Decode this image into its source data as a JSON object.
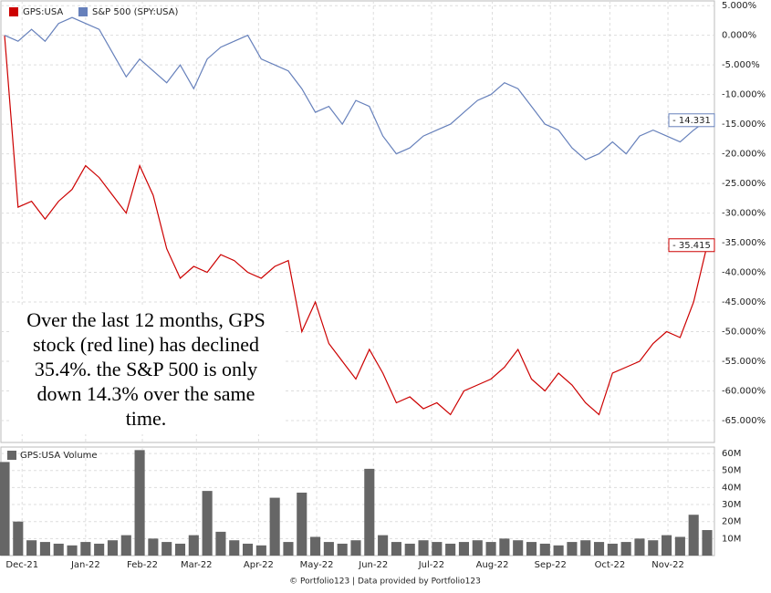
{
  "chart_data": [
    {
      "type": "line",
      "x": [
        0,
        1,
        2,
        3,
        4,
        5,
        6,
        7,
        8,
        9,
        10,
        11,
        12,
        13,
        14,
        15,
        16,
        17,
        18,
        19,
        20,
        21,
        22,
        23,
        24,
        25,
        26,
        27,
        28,
        29,
        30,
        31,
        32,
        33,
        34,
        35,
        36,
        37,
        38,
        39,
        40,
        41,
        42,
        43,
        44,
        45,
        46,
        47,
        48,
        49,
        50,
        51,
        52
      ],
      "xlim": [
        0,
        52
      ],
      "xticks": [
        {
          "value": 1.3,
          "label": "Dec-21"
        },
        {
          "value": 6.0,
          "label": "Jan-22"
        },
        {
          "value": 10.2,
          "label": "Feb-22"
        },
        {
          "value": 14.2,
          "label": "Mar-22"
        },
        {
          "value": 18.8,
          "label": "Apr-22"
        },
        {
          "value": 23.1,
          "label": "May-22"
        },
        {
          "value": 27.3,
          "label": "Jun-22"
        },
        {
          "value": 31.6,
          "label": "Jul-22"
        },
        {
          "value": 36.1,
          "label": "Aug-22"
        },
        {
          "value": 40.4,
          "label": "Sep-22"
        },
        {
          "value": 44.8,
          "label": "Oct-22"
        },
        {
          "value": 49.1,
          "label": "Nov-22"
        }
      ],
      "ylim": [
        -68.7,
        5.8
      ],
      "yticks": [
        {
          "value": 5,
          "label": "5.000%"
        },
        {
          "value": 0,
          "label": "0.000%"
        },
        {
          "value": -5,
          "label": "-5.000%"
        },
        {
          "value": -10,
          "label": "-10.000%"
        },
        {
          "value": -15,
          "label": "-15.000%"
        },
        {
          "value": -20,
          "label": "-20.000%"
        },
        {
          "value": -25,
          "label": "-25.000%"
        },
        {
          "value": -30,
          "label": "-30.000%"
        },
        {
          "value": -35,
          "label": "-35.000%"
        },
        {
          "value": -40,
          "label": "-40.000%"
        },
        {
          "value": -45,
          "label": "-45.000%"
        },
        {
          "value": -50,
          "label": "-50.000%"
        },
        {
          "value": -55,
          "label": "-55.000%"
        },
        {
          "value": -60,
          "label": "-60.000%"
        },
        {
          "value": -65,
          "label": "-65.000%"
        }
      ],
      "grid": true,
      "legend": "top-left",
      "series": [
        {
          "name": "GPS:USA",
          "color": "#cc0000",
          "last_label": "- 35.415",
          "values": [
            0,
            -29,
            -28,
            -31,
            -28,
            -26,
            -22,
            -24,
            -27,
            -30,
            -22,
            -27,
            -36,
            -41,
            -39,
            -40,
            -37,
            -38,
            -40,
            -41,
            -39,
            -38,
            -50,
            -45,
            -52,
            -55,
            -58,
            -53,
            -57,
            -62,
            -61,
            -63,
            -62,
            -64,
            -60,
            -59,
            -58,
            -56,
            -53,
            -58,
            -60,
            -57,
            -59,
            -62,
            -64,
            -57,
            -56,
            -55,
            -52,
            -50,
            -51,
            -45,
            -35.415
          ]
        },
        {
          "name": "S&P 500 (SPY:USA)",
          "color": "#6680bb",
          "last_label": "- 14.331",
          "values": [
            0,
            -1,
            1,
            -1,
            2,
            3,
            2,
            1,
            -3,
            -7,
            -4,
            -6,
            -8,
            -5,
            -9,
            -4,
            -2,
            -1,
            0,
            -4,
            -5,
            -6,
            -9,
            -13,
            -12,
            -15,
            -11,
            -12,
            -17,
            -20,
            -19,
            -17,
            -16,
            -15,
            -13,
            -11,
            -10,
            -8,
            -9,
            -12,
            -15,
            -16,
            -19,
            -21,
            -20,
            -18,
            -20,
            -17,
            -16,
            -17,
            -18,
            -16,
            -14.331
          ]
        }
      ],
      "annotation_lines": [
        "Over the last 12 months, GPS",
        "stock (red line) has declined",
        "35.4%. the S&P 500 is only",
        "down 14.3% over the same",
        "time."
      ]
    },
    {
      "type": "bar",
      "name": "GPS:USA Volume",
      "color": "#666666",
      "x": [
        0,
        1,
        2,
        3,
        4,
        5,
        6,
        7,
        8,
        9,
        10,
        11,
        12,
        13,
        14,
        15,
        16,
        17,
        18,
        19,
        20,
        21,
        22,
        23,
        24,
        25,
        26,
        27,
        28,
        29,
        30,
        31,
        32,
        33,
        34,
        35,
        36,
        37,
        38,
        39,
        40,
        41,
        42,
        43,
        44,
        45,
        46,
        47,
        48,
        49,
        50,
        51,
        52
      ],
      "xlim": [
        0,
        52
      ],
      "values": [
        55,
        20,
        9,
        8,
        7,
        6,
        8,
        7,
        9,
        12,
        62,
        10,
        8,
        7,
        12,
        38,
        14,
        9,
        7,
        6,
        34,
        8,
        37,
        11,
        8,
        7,
        9,
        51,
        12,
        8,
        7,
        9,
        8,
        7,
        8,
        9,
        8,
        10,
        9,
        8,
        7,
        6,
        8,
        9,
        8,
        7,
        8,
        10,
        9,
        12,
        11,
        24,
        15
      ],
      "ylim": [
        0,
        63.8
      ],
      "yticks": [
        {
          "value": 10,
          "label": "10M"
        },
        {
          "value": 20,
          "label": "20M"
        },
        {
          "value": 30,
          "label": "30M"
        },
        {
          "value": 40,
          "label": "40M"
        },
        {
          "value": 50,
          "label": "50M"
        },
        {
          "value": 60,
          "label": "60M"
        }
      ],
      "grid": true
    }
  ],
  "footer": "© Portfolio123 | Data provided by Portfolio123"
}
